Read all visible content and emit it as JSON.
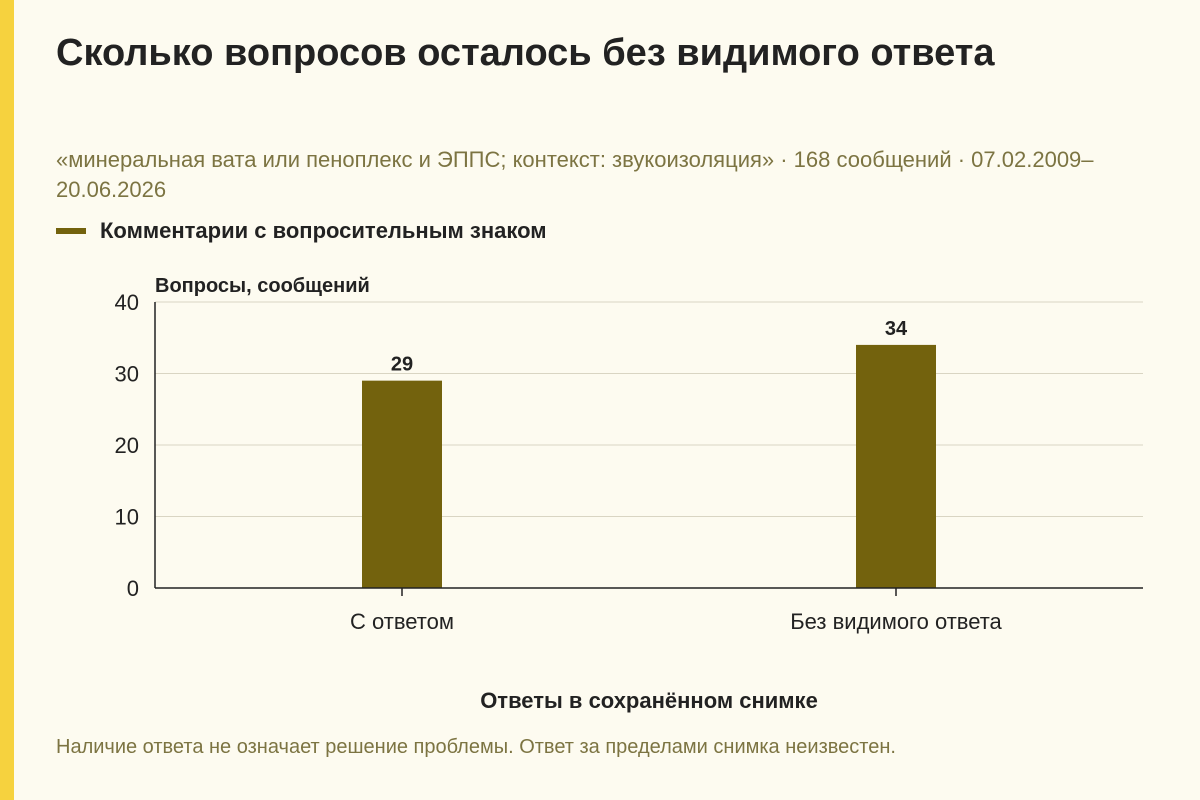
{
  "header": {
    "title": "Сколько вопросов осталось без видимого ответа",
    "subtitle": "«минеральная вата или пеноплекс и ЭППС; контекст: звукоизоляция» · 168 сообщений · 07.02.2009–20.06.2026"
  },
  "footnote": "Наличие ответа не означает решение проблемы. Ответ за пределами снимка неизвестен.",
  "colors": {
    "bar": "#73620d",
    "accent": "#f6d23e",
    "background": "#fdfbf0",
    "muted_text": "#7c7442"
  },
  "chart_data": {
    "type": "bar",
    "categories": [
      "С ответом",
      "Без видимого ответа"
    ],
    "series": [
      {
        "name": "Комментарии с вопросительным знаком",
        "values": [
          29,
          34
        ]
      }
    ],
    "data_labels": [
      "29",
      "34"
    ],
    "xlabel": "Ответы в сохранённом снимке",
    "ylabel": "Вопросы, сообщений",
    "ylim": [
      0,
      40
    ],
    "yticks": [
      0,
      10,
      20,
      30,
      40
    ],
    "grid": true,
    "legend_position": "top-left"
  }
}
